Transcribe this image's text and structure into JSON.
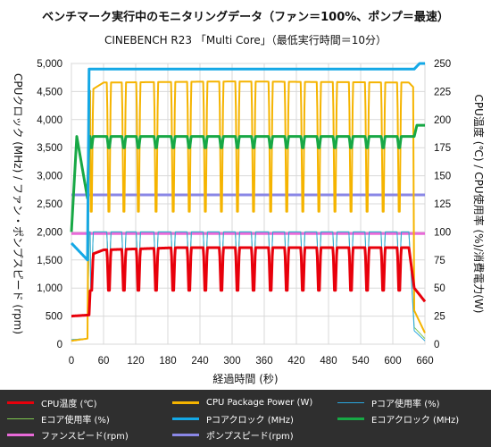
{
  "chart_data": {
    "type": "line",
    "title": "ベンチマーク実行中のモニタリングデータ（ファン＝100%、ポンプ＝最速）",
    "subtitle": "CINEBENCH R23 「Multi Core」（最低実行時間＝10分）",
    "xlabel": "経過時間 (秒)",
    "ylabel_left": "CPUクロック (MHz) / ファン・ポンプスピード (rpm)",
    "ylabel_right": "CPU温度 (℃) / CPU使用率 (%)/消費電力(W)",
    "xlim": [
      0,
      660
    ],
    "ylim_left": [
      0,
      5000
    ],
    "ylim_right": [
      0,
      250
    ],
    "x_ticks": [
      "0",
      "60",
      "120",
      "180",
      "240",
      "300",
      "360",
      "420",
      "480",
      "540",
      "600",
      "660"
    ],
    "y_left_ticks": [
      "0",
      "500",
      "1,000",
      "1,500",
      "2,000",
      "2,500",
      "3,000",
      "3,500",
      "4,000",
      "4,500",
      "5,000"
    ],
    "y_right_ticks": [
      "0",
      "25",
      "50",
      "75",
      "100",
      "125",
      "150",
      "175",
      "200",
      "225",
      "250"
    ],
    "grid": true,
    "legend_position": "bottom",
    "dip_times": [
      37,
      70,
      98,
      125,
      158,
      190,
      220,
      250,
      280,
      310,
      340,
      372,
      402,
      432,
      462,
      492,
      522,
      552,
      582,
      612
    ],
    "series": [
      {
        "name": "CPU温度 (℃)",
        "color": "#e8000b",
        "axis": "right",
        "points": [
          [
            0,
            25
          ],
          [
            33,
            26
          ],
          [
            38,
            80
          ],
          [
            60,
            84
          ],
          [
            200,
            86
          ],
          [
            400,
            86
          ],
          [
            630,
            86
          ],
          [
            640,
            50
          ],
          [
            660,
            38
          ]
        ],
        "dip_value": 48
      },
      {
        "name": "CPU Package Power (W)",
        "color": "#f5b400",
        "axis": "right",
        "points": [
          [
            0,
            3
          ],
          [
            30,
            5
          ],
          [
            33,
            225
          ],
          [
            60,
            233
          ],
          [
            300,
            234
          ],
          [
            630,
            233
          ],
          [
            638,
            229
          ],
          [
            640,
            30
          ],
          [
            660,
            10
          ]
        ],
        "dip_value": 118
      },
      {
        "name": "Pコア使用率 (%)",
        "color": "#29a7e0",
        "axis": "right",
        "points": [
          [
            0,
            4
          ],
          [
            30,
            5
          ],
          [
            33,
            100
          ],
          [
            630,
            100
          ],
          [
            640,
            12
          ],
          [
            660,
            3
          ]
        ],
        "dip_value": 50
      },
      {
        "name": "Eコア使用率 (%)",
        "color": "#7ec850",
        "axis": "right",
        "points": [
          [
            0,
            4
          ],
          [
            30,
            5
          ],
          [
            33,
            100
          ],
          [
            630,
            100
          ],
          [
            640,
            15
          ],
          [
            660,
            5
          ]
        ],
        "dip_value": 48
      },
      {
        "name": "Pコアクロック (MHz)",
        "color": "#14a8e6",
        "axis": "left",
        "points": [
          [
            0,
            1800
          ],
          [
            30,
            1500
          ],
          [
            33,
            4900
          ],
          [
            640,
            4900
          ],
          [
            650,
            5000
          ],
          [
            660,
            5000
          ]
        ]
      },
      {
        "name": "Eコアクロック (MHz)",
        "color": "#17a845",
        "axis": "left",
        "points": [
          [
            0,
            2000
          ],
          [
            10,
            3700
          ],
          [
            30,
            2600
          ],
          [
            33,
            3700
          ],
          [
            640,
            3700
          ],
          [
            645,
            3900
          ],
          [
            660,
            3900
          ]
        ],
        "dip_value": 3500
      },
      {
        "name": "ファンスピード(rpm)",
        "color": "#e86ad8",
        "axis": "left",
        "points": [
          [
            0,
            1970
          ],
          [
            660,
            1970
          ]
        ]
      },
      {
        "name": "ポンプスピード(rpm)",
        "color": "#8a87e6",
        "axis": "left",
        "points": [
          [
            0,
            2660
          ],
          [
            660,
            2660
          ]
        ]
      }
    ]
  }
}
